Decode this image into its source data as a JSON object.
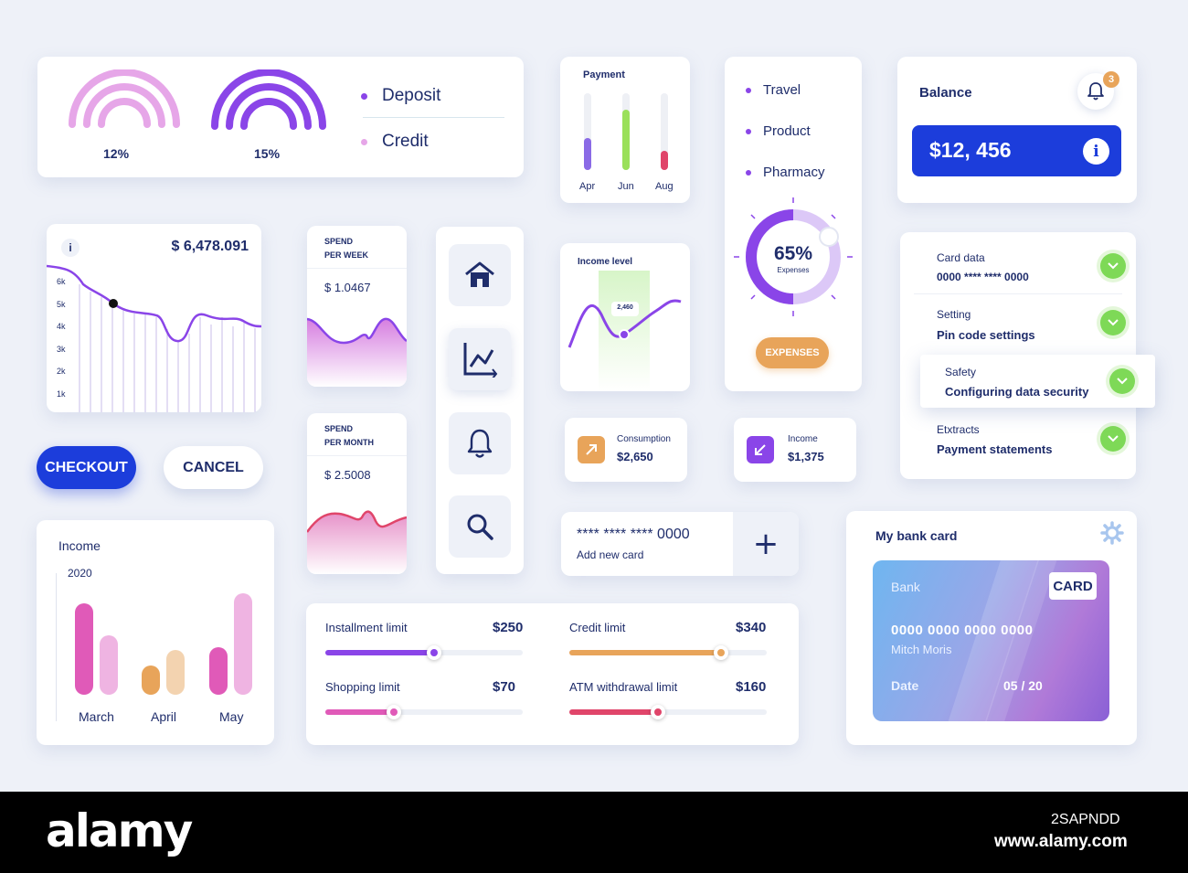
{
  "rings": {
    "left_pct": "12%",
    "right_pct": "15%",
    "legend": [
      {
        "label": "Deposit",
        "color": "#8a45e8"
      },
      {
        "label": "Credit",
        "color": "#e6a6e8"
      }
    ]
  },
  "payment": {
    "title": "Payment",
    "bars": [
      {
        "label": "Apr",
        "color": "#8a6ae6",
        "fill": 0.42
      },
      {
        "label": "Jun",
        "color": "#9ae05a",
        "fill": 0.78
      },
      {
        "label": "Aug",
        "color": "#e0456a",
        "fill": 0.25
      }
    ]
  },
  "categories": {
    "items": [
      "Travel",
      "Product",
      "Pharmacy"
    ],
    "donut_value": "65%",
    "donut_label": "Expenses",
    "donut_fill": 0.65,
    "button": "EXPENSES"
  },
  "balance": {
    "title": "Balance",
    "badge": "3",
    "amount": "$12, 456",
    "info": "i"
  },
  "line_chart": {
    "info": "i",
    "amount": "$ 6,478.091",
    "y_ticks": [
      "6k",
      "5k",
      "4k",
      "3k",
      "2k",
      "1k"
    ]
  },
  "spend_week": {
    "title_1": "SPEND",
    "title_2": "PER WEEK",
    "value": "$ 1.0467"
  },
  "spend_month": {
    "title_1": "SPEND",
    "title_2": "PER MONTH",
    "value": "$ 2.5008"
  },
  "income_level": {
    "title": "Income level",
    "tooltip": "2,460"
  },
  "settings": {
    "items": [
      {
        "label": "Card data",
        "value": "0000 **** **** 0000"
      },
      {
        "label": "Setting",
        "value": "Pin code settings"
      },
      {
        "label": "Safety",
        "value": "Configuring data security"
      },
      {
        "label": "Etxtracts",
        "value": "Payment statements"
      }
    ]
  },
  "buttons": {
    "checkout": "CHECKOUT",
    "cancel": "CANCEL"
  },
  "consumption": {
    "label": "Consumption",
    "value": "$2,650"
  },
  "income_small": {
    "label": "Income",
    "value": "$1,375"
  },
  "income_chart": {
    "title": "Income",
    "year": "2020",
    "chart_data": {
      "type": "bar",
      "title": "Income",
      "categories": [
        "March",
        "April",
        "May"
      ],
      "series": [
        {
          "values": [
            100,
            32,
            52
          ]
        },
        {
          "values": [
            65,
            49,
            111
          ]
        }
      ],
      "colors": [
        [
          "#e05ab8",
          "#efb4e2"
        ],
        [
          "#e8a45a",
          "#f3d3b0"
        ],
        [
          "#e05ab8",
          "#efb4e2"
        ]
      ],
      "ylim": [
        0,
        115
      ]
    }
  },
  "add_card": {
    "number": "**** **** **** 0000",
    "label": "Add new card",
    "plus": "+"
  },
  "limits": [
    {
      "label": "Installment limit",
      "value": "$250",
      "color": "#8a45e8",
      "fill": 0.55
    },
    {
      "label": "Credit limit",
      "value": "$340",
      "color": "#e8a45a",
      "fill": 0.77
    },
    {
      "label": "Shopping limit",
      "value": "$70",
      "color": "#e05ab8",
      "fill": 0.35
    },
    {
      "label": "ATM withdrawal limit",
      "value": "$160",
      "color": "#e0456a",
      "fill": 0.45
    }
  ],
  "bank_card": {
    "title": "My bank card",
    "bank": "Bank",
    "badge": "CARD",
    "number": "0000 0000 0000 0000",
    "holder": "Mitch Moris",
    "date_label": "Date",
    "date": "05 / 20"
  },
  "nav_icons": [
    "home-icon",
    "chart-icon",
    "bell-icon",
    "search-icon"
  ],
  "footer": {
    "brand": "alamy",
    "image_id": "2SAPNDD",
    "site": "www.alamy.com"
  }
}
